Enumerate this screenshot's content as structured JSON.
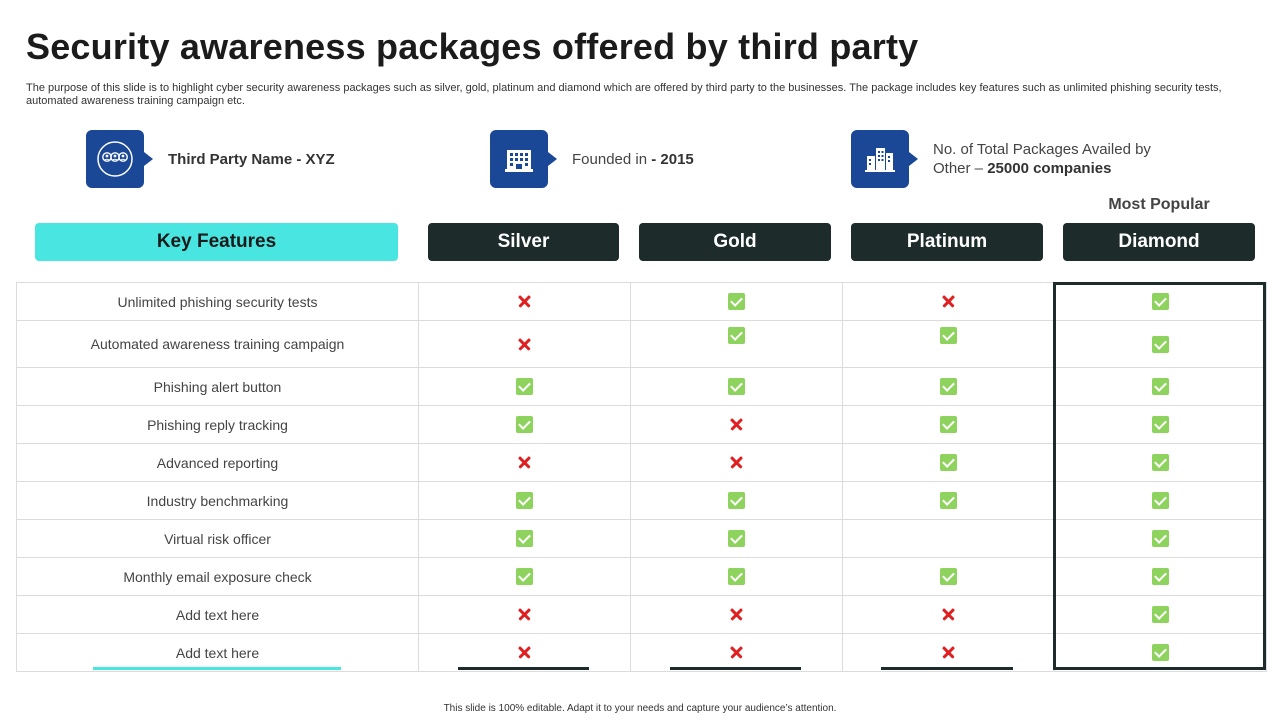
{
  "title": "Security awareness packages offered by third party",
  "subtitle": "The purpose of this slide is to highlight cyber security awareness packages such as silver, gold, platinum and diamond which are offered by third party to the businesses. The package includes key features such as unlimited phishing security tests, automated awareness training campaign etc.",
  "info": {
    "party_label": "Third Party Name - ",
    "party_value": "XYZ",
    "founded_label": "Founded in ",
    "founded_value": "- 2015",
    "packages_label": "No. of Total Packages Availed by",
    "packages_label2": "Other – ",
    "packages_value": "25000 companies"
  },
  "most_popular": "Most Popular",
  "headers": {
    "features": "Key Features",
    "silver": "Silver",
    "gold": "Gold",
    "platinum": "Platinum",
    "diamond": "Diamond"
  },
  "icons": {
    "party": "people-group-icon",
    "founded": "office-building-icon",
    "packages": "city-buildings-icon",
    "check": "check-icon",
    "cross": "cross-icon"
  },
  "colors": {
    "key_header": "#48e5e1",
    "package_header": "#1d2b2a",
    "icon_badge": "#1a4896",
    "check": "#8dd35d",
    "cross": "#e02020"
  },
  "rows": [
    {
      "feature": "Unlimited phishing security tests",
      "silver": "no",
      "gold": "yes",
      "platinum": "no",
      "diamond": "yes"
    },
    {
      "feature": "Automated awareness training campaign",
      "silver": "no",
      "gold": "yes",
      "platinum": "yes",
      "diamond": "yes"
    },
    {
      "feature": "Phishing alert button",
      "silver": "yes",
      "gold": "yes",
      "platinum": "yes",
      "diamond": "yes"
    },
    {
      "feature": "Phishing reply tracking",
      "silver": "yes",
      "gold": "no",
      "platinum": "yes",
      "diamond": "yes"
    },
    {
      "feature": "Advanced reporting",
      "silver": "no",
      "gold": "no",
      "platinum": "yes",
      "diamond": "yes"
    },
    {
      "feature": "Industry benchmarking",
      "silver": "yes",
      "gold": "yes",
      "platinum": "yes",
      "diamond": "yes"
    },
    {
      "feature": "Virtual risk officer",
      "silver": "yes",
      "gold": "yes",
      "platinum": "",
      "diamond": "yes"
    },
    {
      "feature": "Monthly email exposure check",
      "silver": "yes",
      "gold": "yes",
      "platinum": "yes",
      "diamond": "yes"
    },
    {
      "feature": "Add text here",
      "silver": "no",
      "gold": "no",
      "platinum": "no",
      "diamond": "yes"
    },
    {
      "feature": "Add text here",
      "silver": "no",
      "gold": "no",
      "platinum": "no",
      "diamond": "yes"
    }
  ],
  "footer": "This slide is 100% editable. Adapt it to your needs and capture your audience’s attention."
}
